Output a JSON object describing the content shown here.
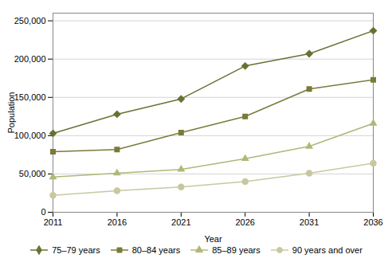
{
  "chart_data": {
    "type": "line",
    "x": [
      2011,
      2016,
      2021,
      2026,
      2031,
      2036
    ],
    "xlabel": "Year",
    "ylabel": "Population",
    "xlim": [
      2011,
      2036
    ],
    "xticks": [
      2011,
      2016,
      2021,
      2026,
      2031,
      2036
    ],
    "ylim": [
      0,
      260000
    ],
    "yticks": [
      0,
      {
        "value": 50000,
        "label": "50,000"
      },
      {
        "value": 100000,
        "label": "100,000"
      },
      {
        "value": 150000,
        "label": "150,000"
      },
      {
        "value": 200000,
        "label": "200,000"
      },
      {
        "value": 250000,
        "label": "250,000"
      }
    ],
    "grid": true,
    "legend": "bottom",
    "series": [
      {
        "name": "75–79 years",
        "color": "#6b7033",
        "marker": "diamond",
        "values": [
          103000,
          128000,
          148000,
          191000,
          207000,
          237000
        ]
      },
      {
        "name": "80–84 years",
        "color": "#7a7a3a",
        "marker": "square",
        "values": [
          79000,
          82000,
          104000,
          125000,
          161000,
          173000
        ]
      },
      {
        "name": "85–89 years",
        "color": "#b0b878",
        "marker": "triangle",
        "values": [
          46000,
          51000,
          56000,
          70000,
          86000,
          116000
        ]
      },
      {
        "name": "90 years and over",
        "color": "#c8c8a0",
        "marker": "circle",
        "values": [
          22000,
          28000,
          33000,
          40000,
          51000,
          64000
        ]
      }
    ]
  }
}
